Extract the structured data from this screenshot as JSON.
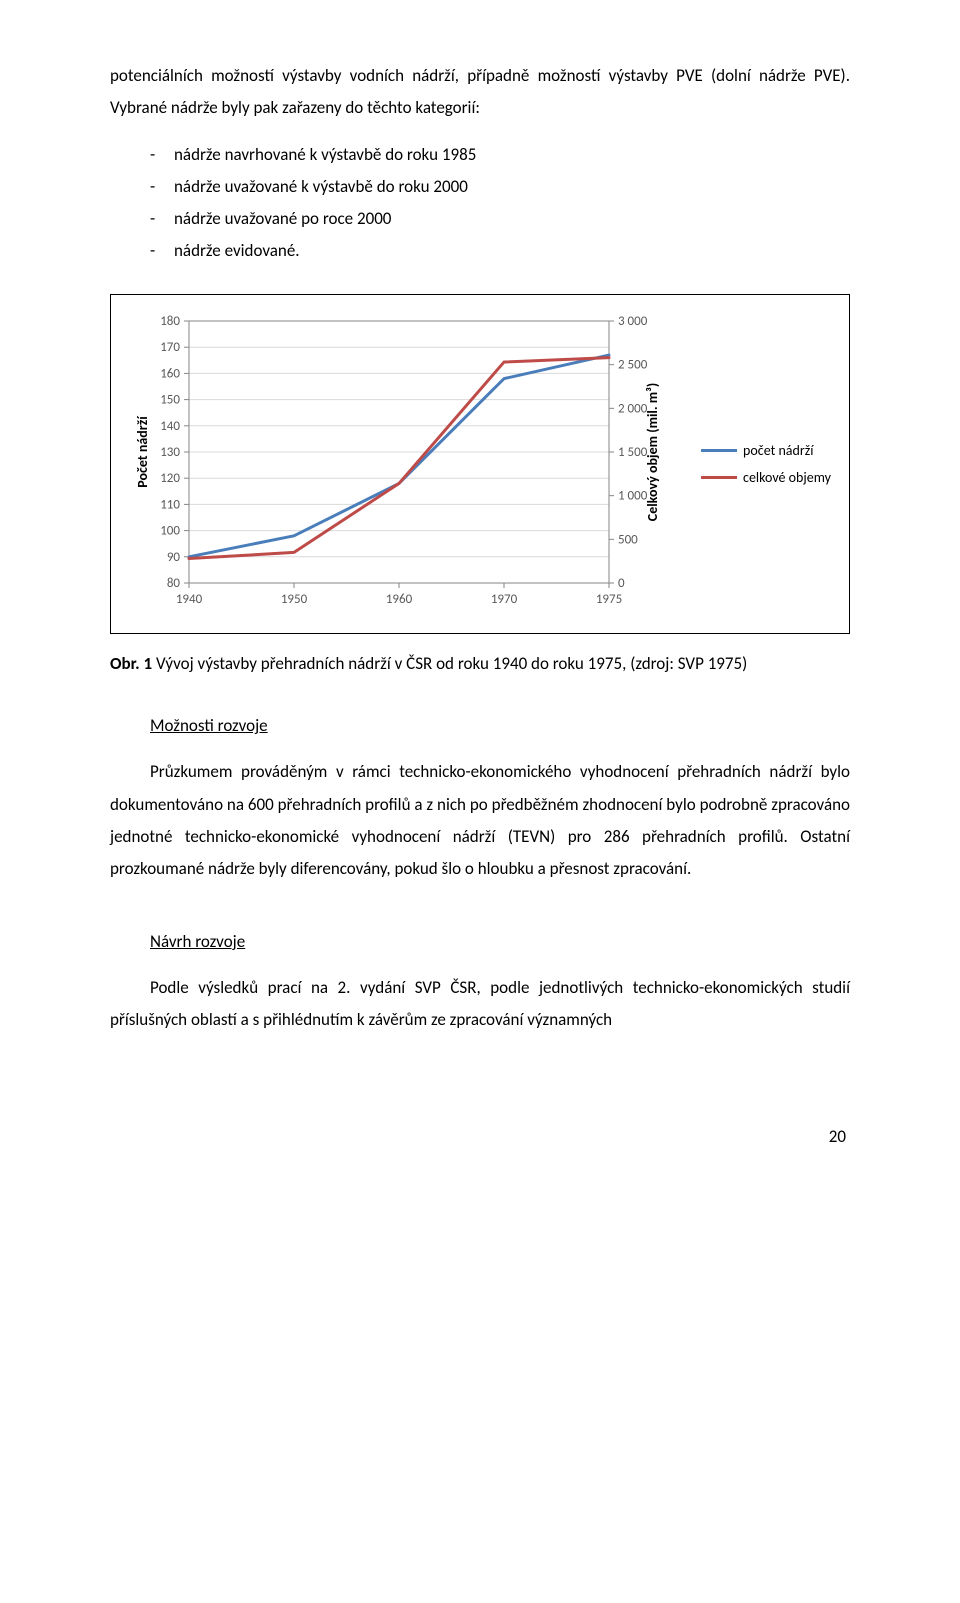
{
  "paragraph1": "potenciálních možností výstavby vodních nádrží, případně možností výstavby PVE (dolní nádrže PVE). Vybrané nádrže byly pak zařazeny do těchto kategorií:",
  "listItems": [
    "nádrže navrhované k výstavbě do roku 1985",
    "nádrže uvažované k výstavbě do roku 2000",
    "nádrže uvažované po roce 2000",
    "nádrže evidované."
  ],
  "bullet": "-",
  "caption_label": "Obr. 1",
  "caption_text": " Vývoj výstavby přehradních nádrží v ČSR od roku 1940 do roku 1975, (zdroj: SVP 1975)",
  "heading_moznosti": "Možnosti rozvoje",
  "paragraph2": "Průzkumem prováděným v rámci technicko-ekonomického vyhodnocení přehradních nádrží bylo dokumentováno na 600 přehradních profilů a z nich po předběžném zhodnocení bylo podrobně zpracováno jednotné technicko-ekonomické vyhodnocení nádrží (TEVN) pro 286 přehradních profilů. Ostatní prozkoumané nádrže byly diferencovány, pokud šlo o hloubku a přesnost zpracování.",
  "heading_navrh": "Návrh rozvoje",
  "paragraph3": "Podle výsledků prací na 2. vydání SVP ČSR, podle jednotlivých technicko-ekonomických studií příslušných oblastí a s přihlédnutím k závěrům ze zpracování významných",
  "page_number": "20",
  "chart": {
    "type": "line",
    "categories": [
      "1940",
      "1950",
      "1960",
      "1970",
      "1975"
    ],
    "left_axis": {
      "min": 80,
      "max": 180,
      "step": 10,
      "title": "Počet nádrží"
    },
    "right_axis": {
      "min": 0,
      "max": 3000,
      "step": 500,
      "title": "Celkový objem (mil. m³)"
    },
    "series": [
      {
        "name": "počet nádrží",
        "color": "#4a7ebb",
        "axis": "left",
        "values": [
          90,
          98,
          118,
          158,
          167
        ]
      },
      {
        "name": "celkové objemy",
        "color": "#be4b48",
        "axis": "right",
        "values": [
          280,
          350,
          1140,
          2530,
          2580
        ]
      }
    ],
    "line_width": 3,
    "plot_border_color": "#868686",
    "grid_color": "#d9d9d9",
    "tick_color": "#868686",
    "background_color": "#ffffff"
  }
}
